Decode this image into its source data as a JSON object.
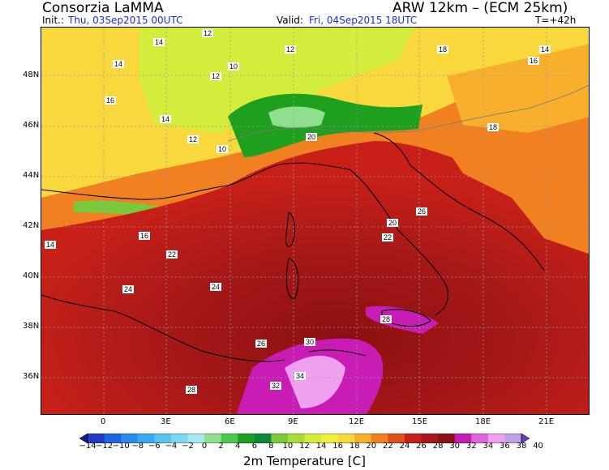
{
  "header": {
    "title": "Consorzia LaMMA",
    "model": "ARW 12km – (ECM 25km)",
    "init_label": "Init.:",
    "init_value": "Thu, 03Sep2015 00UTC",
    "valid_label": "Valid:",
    "valid_value": "Fri, 04Sep2015 18UTC",
    "forecast_step": "T=+42h"
  },
  "map": {
    "lat_ticks": [
      "48N",
      "46N",
      "44N",
      "42N",
      "40N",
      "38N",
      "36N"
    ],
    "lon_ticks": [
      "0",
      "3E",
      "6E",
      "9E",
      "12E",
      "15E",
      "18E",
      "21E"
    ],
    "labels": [
      "14",
      "12",
      "14",
      "12",
      "10",
      "18",
      "16",
      "14",
      "12",
      "16",
      "14",
      "12",
      "10",
      "14",
      "16",
      "20",
      "22",
      "24",
      "26",
      "28",
      "18",
      "20",
      "22",
      "24",
      "26",
      "28",
      "30",
      "32",
      "34"
    ]
  },
  "colorbar": {
    "title": "2m Temperature [C]",
    "tick_labels": [
      "-14",
      "-12",
      "-10",
      "-8",
      "-6",
      "-4",
      "-2",
      "0",
      "2",
      "4",
      "6",
      "8",
      "10",
      "12",
      "14",
      "16",
      "18",
      "20",
      "22",
      "24",
      "26",
      "28",
      "30",
      "32",
      "34",
      "36",
      "38",
      "40"
    ],
    "colors": [
      "#1a1a8c",
      "#1f3cc8",
      "#1e64e6",
      "#2a8cf0",
      "#38a8f0",
      "#58c4f0",
      "#7cd8f0",
      "#a8e8f0",
      "#8ee08e",
      "#4cc84c",
      "#1ea01e",
      "#0a8a3a",
      "#7cc83c",
      "#a8dc3c",
      "#d4ec3c",
      "#f0f03c",
      "#f8d83c",
      "#f8b02c",
      "#f08020",
      "#e05018",
      "#c82018",
      "#a81818",
      "#8c1010",
      "#c81cb4",
      "#e064dc",
      "#f0a0f0",
      "#c0a0e8",
      "#6040c0"
    ]
  }
}
